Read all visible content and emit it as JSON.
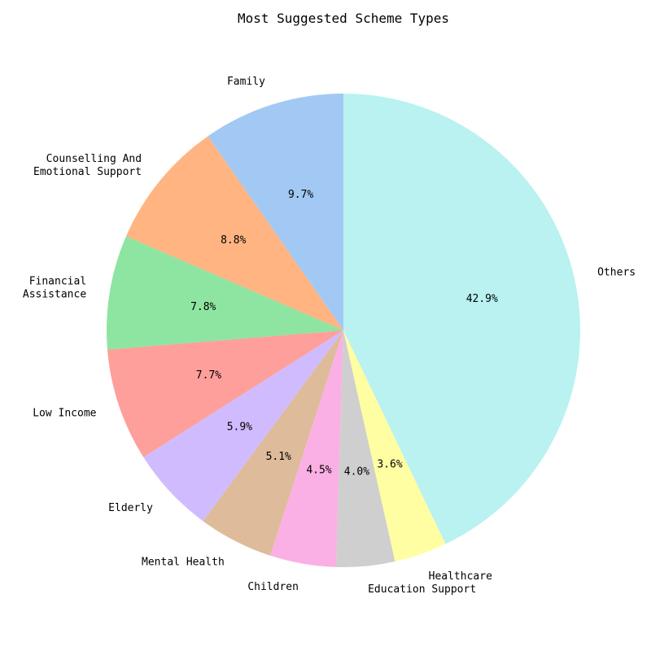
{
  "chart_data": {
    "type": "pie",
    "title": "Most Suggested Scheme Types",
    "start_angle_deg": 90,
    "direction": "counterclockwise",
    "slices": [
      {
        "label": "Family",
        "value": 9.7,
        "pct_label": "9.7%",
        "color": "#a1c9f4"
      },
      {
        "label": "Counselling And\nEmotional Support",
        "value": 8.8,
        "pct_label": "8.8%",
        "color": "#ffb482"
      },
      {
        "label": "Financial\nAssistance",
        "value": 7.8,
        "pct_label": "7.8%",
        "color": "#8de5a1"
      },
      {
        "label": "Low Income",
        "value": 7.7,
        "pct_label": "7.7%",
        "color": "#ff9f9b"
      },
      {
        "label": "Elderly",
        "value": 5.9,
        "pct_label": "5.9%",
        "color": "#d0bbff"
      },
      {
        "label": "Mental Health",
        "value": 5.1,
        "pct_label": "5.1%",
        "color": "#debb9b"
      },
      {
        "label": "Children",
        "value": 4.5,
        "pct_label": "4.5%",
        "color": "#fab0e4"
      },
      {
        "label": "Education Support",
        "value": 4.0,
        "pct_label": "4.0%",
        "color": "#cfcfcf"
      },
      {
        "label": "Healthcare",
        "value": 3.6,
        "pct_label": "3.6%",
        "color": "#fffea3"
      },
      {
        "label": "Others",
        "value": 42.9,
        "pct_label": "42.9%",
        "color": "#b9f2f0"
      }
    ]
  }
}
